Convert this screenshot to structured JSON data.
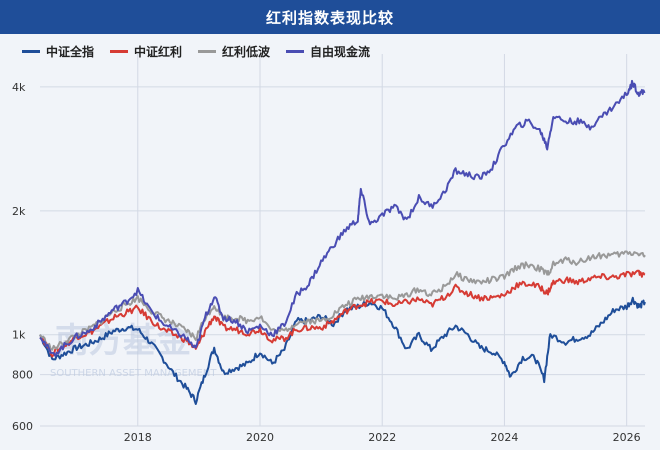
{
  "title": "红利指数表现比较",
  "watermark": {
    "cn": "南方基金",
    "en": "SOUTHERN ASSET MANAGEMENT"
  },
  "chart_data": {
    "type": "line",
    "y_scale": "log",
    "ylim": [
      600,
      4300
    ],
    "xlim": [
      2016.4,
      2026.3
    ],
    "y_ticks": [
      {
        "value": 600,
        "label": "600"
      },
      {
        "value": 800,
        "label": "800"
      },
      {
        "value": 1000,
        "label": "1k"
      },
      {
        "value": 2000,
        "label": "2k"
      },
      {
        "value": 4000,
        "label": "4k"
      }
    ],
    "x_ticks": [
      {
        "value": 2018,
        "label": "2018"
      },
      {
        "value": 2020,
        "label": "2020"
      },
      {
        "value": 2022,
        "label": "2022"
      },
      {
        "value": 2024,
        "label": "2024"
      },
      {
        "value": 2026,
        "label": "2026"
      }
    ],
    "grid": true,
    "legend_position": "top-left",
    "series": [
      {
        "name": "中证全指",
        "color": "#1f4e99",
        "points": [
          [
            2016.4,
            1000
          ],
          [
            2016.6,
            870
          ],
          [
            2016.8,
            900
          ],
          [
            2017.0,
            930
          ],
          [
            2017.2,
            950
          ],
          [
            2017.4,
            980
          ],
          [
            2017.6,
            1020
          ],
          [
            2017.8,
            1040
          ],
          [
            2018.0,
            1030
          ],
          [
            2018.2,
            960
          ],
          [
            2018.4,
            880
          ],
          [
            2018.6,
            800
          ],
          [
            2018.8,
            740
          ],
          [
            2018.95,
            690
          ],
          [
            2019.1,
            800
          ],
          [
            2019.25,
            930
          ],
          [
            2019.4,
            810
          ],
          [
            2019.6,
            830
          ],
          [
            2019.8,
            850
          ],
          [
            2020.0,
            910
          ],
          [
            2020.2,
            850
          ],
          [
            2020.4,
            920
          ],
          [
            2020.6,
            1080
          ],
          [
            2020.8,
            1080
          ],
          [
            2021.0,
            1110
          ],
          [
            2021.2,
            1060
          ],
          [
            2021.4,
            1150
          ],
          [
            2021.6,
            1170
          ],
          [
            2021.8,
            1200
          ],
          [
            2022.0,
            1160
          ],
          [
            2022.2,
            1050
          ],
          [
            2022.4,
            920
          ],
          [
            2022.6,
            1000
          ],
          [
            2022.8,
            920
          ],
          [
            2023.0,
            990
          ],
          [
            2023.2,
            1050
          ],
          [
            2023.4,
            1000
          ],
          [
            2023.6,
            930
          ],
          [
            2023.8,
            910
          ],
          [
            2024.0,
            860
          ],
          [
            2024.1,
            790
          ],
          [
            2024.3,
            880
          ],
          [
            2024.5,
            880
          ],
          [
            2024.65,
            780
          ],
          [
            2024.75,
            1000
          ],
          [
            2025.0,
            960
          ],
          [
            2025.2,
            980
          ],
          [
            2025.4,
            1000
          ],
          [
            2025.6,
            1070
          ],
          [
            2025.8,
            1150
          ],
          [
            2026.0,
            1170
          ],
          [
            2026.1,
            1220
          ],
          [
            2026.2,
            1170
          ],
          [
            2026.3,
            1200
          ]
        ]
      },
      {
        "name": "中证红利",
        "color": "#d63b34",
        "points": [
          [
            2016.4,
            1000
          ],
          [
            2016.6,
            900
          ],
          [
            2016.8,
            940
          ],
          [
            2017.0,
            990
          ],
          [
            2017.2,
            1010
          ],
          [
            2017.4,
            1050
          ],
          [
            2017.6,
            1100
          ],
          [
            2017.8,
            1130
          ],
          [
            2018.0,
            1160
          ],
          [
            2018.2,
            1090
          ],
          [
            2018.4,
            1030
          ],
          [
            2018.6,
            1000
          ],
          [
            2018.8,
            970
          ],
          [
            2018.95,
            920
          ],
          [
            2019.1,
            1020
          ],
          [
            2019.25,
            1110
          ],
          [
            2019.4,
            1040
          ],
          [
            2019.6,
            1030
          ],
          [
            2019.8,
            1010
          ],
          [
            2020.0,
            1030
          ],
          [
            2020.2,
            970
          ],
          [
            2020.4,
            980
          ],
          [
            2020.6,
            1030
          ],
          [
            2020.8,
            1040
          ],
          [
            2021.0,
            1040
          ],
          [
            2021.2,
            1080
          ],
          [
            2021.4,
            1140
          ],
          [
            2021.6,
            1180
          ],
          [
            2021.8,
            1200
          ],
          [
            2022.0,
            1210
          ],
          [
            2022.2,
            1180
          ],
          [
            2022.4,
            1200
          ],
          [
            2022.6,
            1220
          ],
          [
            2022.8,
            1180
          ],
          [
            2023.0,
            1230
          ],
          [
            2023.2,
            1300
          ],
          [
            2023.4,
            1260
          ],
          [
            2023.6,
            1230
          ],
          [
            2023.8,
            1230
          ],
          [
            2024.0,
            1250
          ],
          [
            2024.2,
            1320
          ],
          [
            2024.4,
            1330
          ],
          [
            2024.6,
            1300
          ],
          [
            2024.7,
            1260
          ],
          [
            2024.8,
            1340
          ],
          [
            2025.0,
            1360
          ],
          [
            2025.2,
            1340
          ],
          [
            2025.4,
            1370
          ],
          [
            2025.6,
            1380
          ],
          [
            2025.8,
            1380
          ],
          [
            2026.0,
            1400
          ],
          [
            2026.2,
            1410
          ],
          [
            2026.3,
            1400
          ]
        ]
      },
      {
        "name": "红利低波",
        "color": "#999999",
        "points": [
          [
            2016.4,
            1000
          ],
          [
            2016.6,
            920
          ],
          [
            2016.8,
            960
          ],
          [
            2017.0,
            1000
          ],
          [
            2017.2,
            1030
          ],
          [
            2017.4,
            1080
          ],
          [
            2017.6,
            1140
          ],
          [
            2017.8,
            1180
          ],
          [
            2018.0,
            1230
          ],
          [
            2018.2,
            1150
          ],
          [
            2018.4,
            1100
          ],
          [
            2018.6,
            1060
          ],
          [
            2018.8,
            1020
          ],
          [
            2018.95,
            980
          ],
          [
            2019.1,
            1100
          ],
          [
            2019.25,
            1180
          ],
          [
            2019.4,
            1100
          ],
          [
            2019.6,
            1100
          ],
          [
            2019.8,
            1080
          ],
          [
            2020.0,
            1110
          ],
          [
            2020.2,
            1020
          ],
          [
            2020.4,
            1020
          ],
          [
            2020.6,
            1070
          ],
          [
            2020.8,
            1080
          ],
          [
            2021.0,
            1080
          ],
          [
            2021.2,
            1120
          ],
          [
            2021.4,
            1180
          ],
          [
            2021.6,
            1220
          ],
          [
            2021.8,
            1240
          ],
          [
            2022.0,
            1250
          ],
          [
            2022.2,
            1220
          ],
          [
            2022.4,
            1250
          ],
          [
            2022.6,
            1290
          ],
          [
            2022.8,
            1250
          ],
          [
            2023.0,
            1300
          ],
          [
            2023.2,
            1400
          ],
          [
            2023.4,
            1360
          ],
          [
            2023.6,
            1340
          ],
          [
            2023.8,
            1360
          ],
          [
            2024.0,
            1380
          ],
          [
            2024.2,
            1460
          ],
          [
            2024.4,
            1480
          ],
          [
            2024.6,
            1440
          ],
          [
            2024.7,
            1400
          ],
          [
            2024.8,
            1480
          ],
          [
            2025.0,
            1520
          ],
          [
            2025.2,
            1500
          ],
          [
            2025.4,
            1540
          ],
          [
            2025.6,
            1560
          ],
          [
            2025.8,
            1560
          ],
          [
            2026.0,
            1580
          ],
          [
            2026.2,
            1580
          ],
          [
            2026.3,
            1560
          ]
        ]
      },
      {
        "name": "自由现金流",
        "color": "#4a4db3",
        "points": [
          [
            2016.4,
            1000
          ],
          [
            2016.6,
            890
          ],
          [
            2016.8,
            940
          ],
          [
            2017.0,
            990
          ],
          [
            2017.2,
            1020
          ],
          [
            2017.4,
            1080
          ],
          [
            2017.6,
            1150
          ],
          [
            2017.8,
            1200
          ],
          [
            2018.0,
            1280
          ],
          [
            2018.2,
            1150
          ],
          [
            2018.4,
            1070
          ],
          [
            2018.6,
            1020
          ],
          [
            2018.8,
            980
          ],
          [
            2018.95,
            920
          ],
          [
            2019.1,
            1100
          ],
          [
            2019.25,
            1240
          ],
          [
            2019.4,
            1100
          ],
          [
            2019.6,
            1080
          ],
          [
            2019.8,
            1020
          ],
          [
            2020.0,
            1050
          ],
          [
            2020.2,
            1000
          ],
          [
            2020.4,
            1060
          ],
          [
            2020.6,
            1250
          ],
          [
            2020.8,
            1330
          ],
          [
            2021.0,
            1500
          ],
          [
            2021.2,
            1650
          ],
          [
            2021.4,
            1800
          ],
          [
            2021.6,
            1900
          ],
          [
            2021.65,
            2250
          ],
          [
            2021.8,
            1850
          ],
          [
            2022.0,
            1950
          ],
          [
            2022.2,
            2050
          ],
          [
            2022.4,
            1900
          ],
          [
            2022.6,
            2150
          ],
          [
            2022.8,
            2050
          ],
          [
            2023.0,
            2200
          ],
          [
            2023.2,
            2500
          ],
          [
            2023.4,
            2450
          ],
          [
            2023.6,
            2400
          ],
          [
            2023.8,
            2550
          ],
          [
            2024.0,
            2900
          ],
          [
            2024.2,
            3200
          ],
          [
            2024.4,
            3300
          ],
          [
            2024.6,
            3100
          ],
          [
            2024.7,
            2850
          ],
          [
            2024.8,
            3400
          ],
          [
            2025.0,
            3300
          ],
          [
            2025.2,
            3300
          ],
          [
            2025.4,
            3200
          ],
          [
            2025.6,
            3400
          ],
          [
            2025.8,
            3600
          ],
          [
            2026.0,
            3850
          ],
          [
            2026.1,
            4100
          ],
          [
            2026.2,
            3850
          ],
          [
            2026.3,
            3900
          ]
        ]
      }
    ]
  }
}
